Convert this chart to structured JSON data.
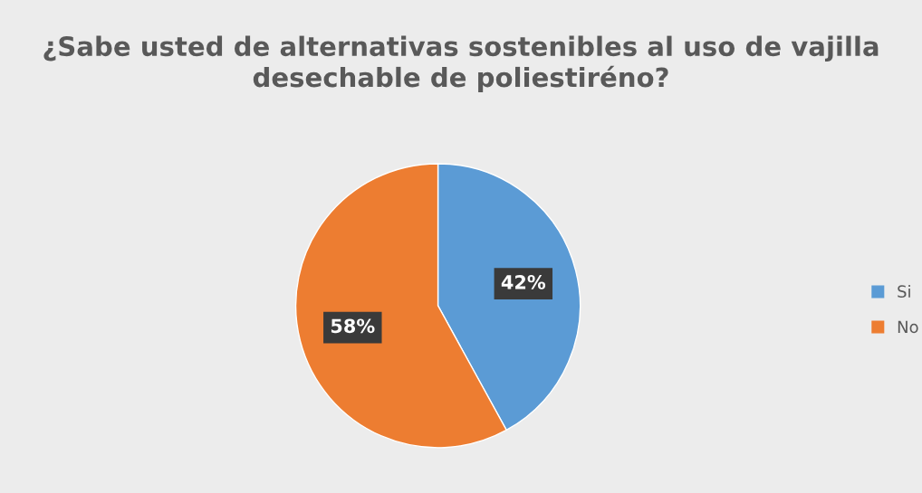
{
  "chart_data": {
    "type": "pie",
    "title": "¿Sabe usted de alternativas sostenibles al uso de vajilla desechable de poliestiréno?",
    "categories": [
      "Si",
      "No"
    ],
    "values": [
      42,
      58
    ],
    "colors": [
      "#5b9bd5",
      "#ed7d31"
    ],
    "value_labels": [
      "42%",
      "58%"
    ],
    "legend": "right"
  }
}
